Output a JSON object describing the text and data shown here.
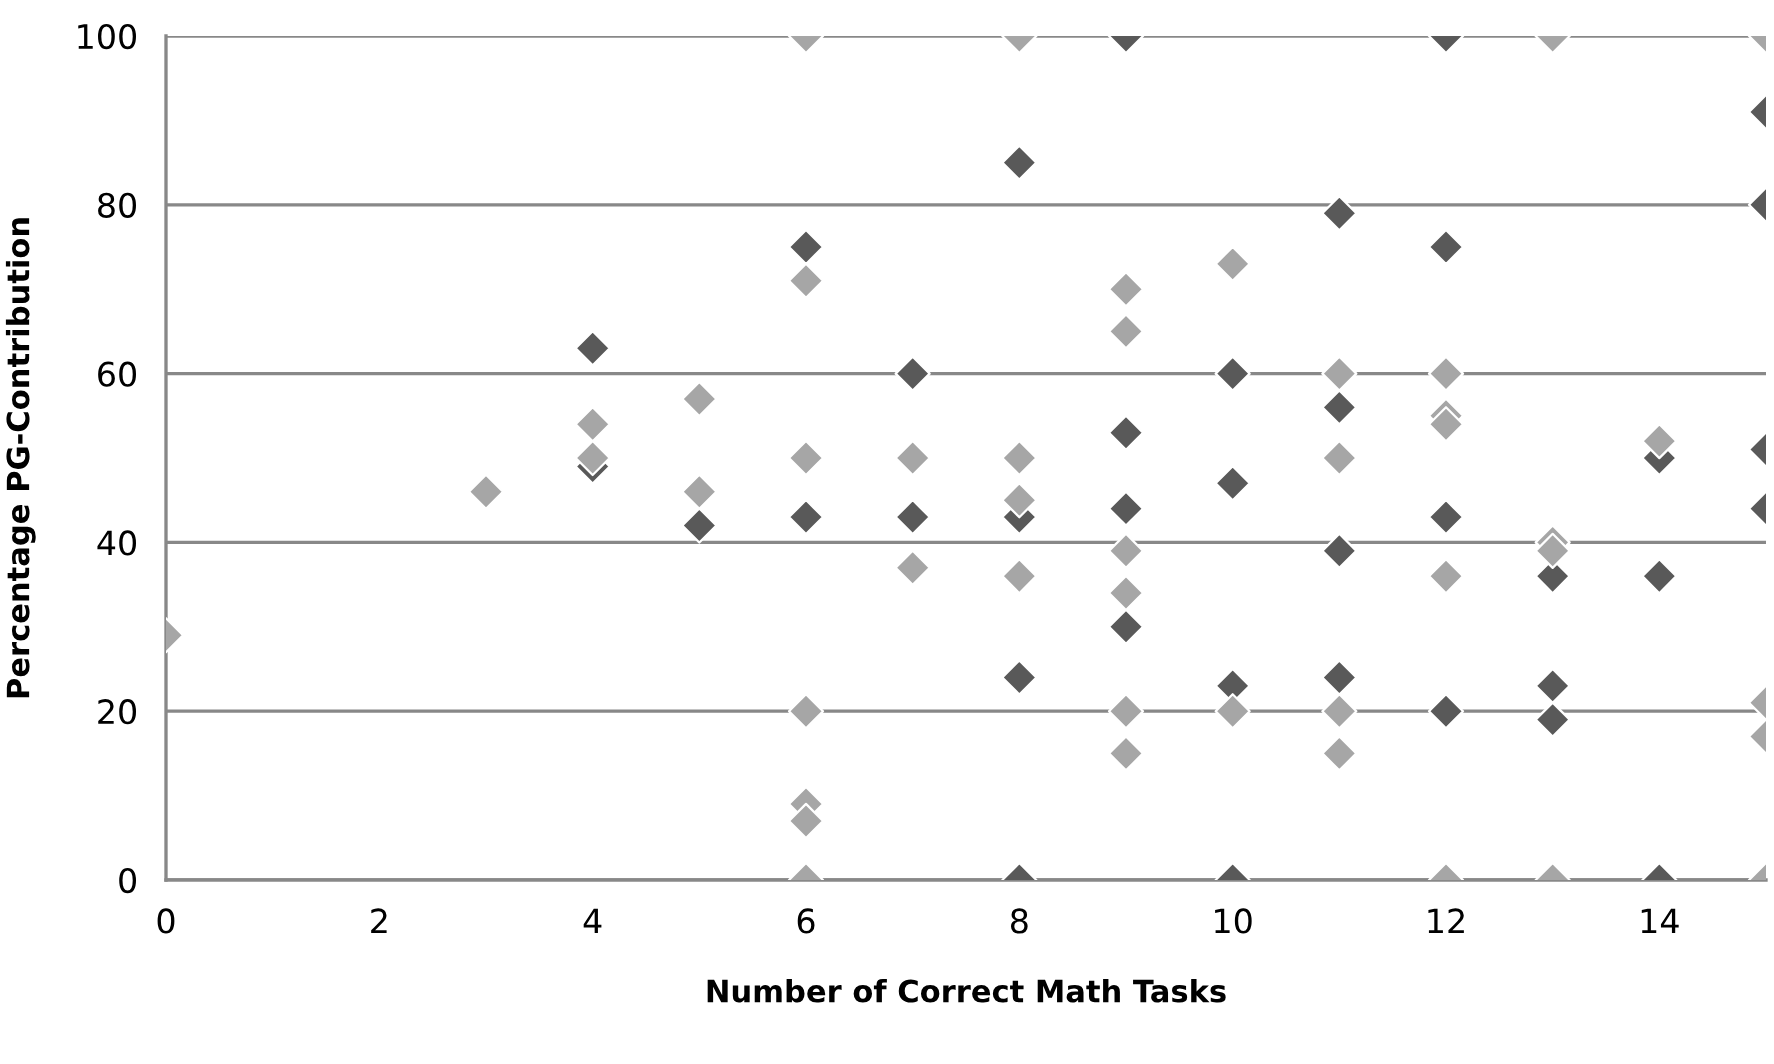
{
  "chart_data": {
    "type": "scatter",
    "xlabel": "Number of Correct Math Tasks",
    "ylabel": "Percentage PG-Contribution",
    "xlim": [
      0,
      15
    ],
    "xticks": [
      0,
      2,
      4,
      6,
      8,
      10,
      12,
      14
    ],
    "ylim": [
      0,
      100
    ],
    "yticks": [
      0,
      20,
      40,
      60,
      80,
      100
    ],
    "grid": "y",
    "legend": false,
    "marker": "diamond",
    "series": [
      {
        "color": "#a6a6a6",
        "x": [
          0,
          3,
          4,
          4,
          5,
          5,
          6,
          6,
          6,
          6,
          6,
          6,
          6,
          7,
          7,
          8,
          8,
          8,
          8,
          9,
          9,
          9,
          9,
          9,
          9,
          10,
          10,
          11,
          11,
          11,
          11,
          12,
          12,
          12,
          12,
          12,
          13,
          13,
          13,
          13,
          14,
          15,
          15,
          15,
          15
        ],
        "values": [
          29,
          46,
          54,
          50,
          57,
          46,
          100,
          71,
          50,
          20,
          9,
          7,
          0,
          50,
          37,
          100,
          50,
          45,
          36,
          70,
          65,
          39,
          34,
          20,
          15,
          73,
          20,
          60,
          50,
          20,
          15,
          60,
          55,
          54,
          36,
          0,
          100,
          40,
          39,
          0,
          52,
          100,
          21,
          17,
          0
        ]
      },
      {
        "color": "#595959",
        "x": [
          4,
          4,
          5,
          6,
          6,
          7,
          7,
          8,
          8,
          8,
          8,
          9,
          9,
          9,
          9,
          10,
          10,
          10,
          10,
          11,
          11,
          11,
          11,
          12,
          12,
          12,
          12,
          13,
          13,
          13,
          14,
          14,
          14,
          15,
          15,
          15,
          15
        ],
        "values": [
          63,
          49,
          42,
          75,
          43,
          60,
          43,
          85,
          43,
          24,
          0,
          100,
          53,
          44,
          30,
          60,
          47,
          23,
          0,
          79,
          56,
          39,
          24,
          100,
          75,
          43,
          20,
          36,
          23,
          19,
          50,
          36,
          0,
          91,
          80,
          51,
          44
        ]
      }
    ]
  }
}
